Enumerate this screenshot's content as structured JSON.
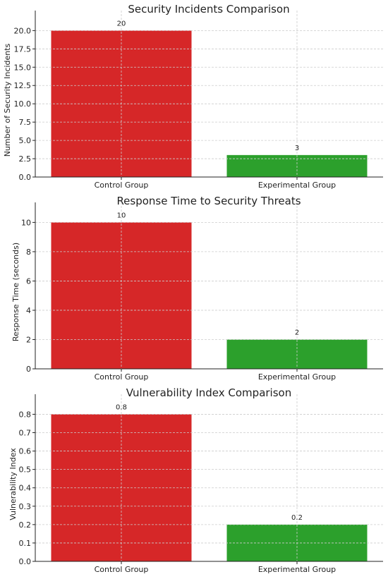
{
  "chart_data": [
    {
      "type": "bar",
      "title": "Security Incidents Comparison",
      "xlabel": "",
      "ylabel": "Number of Security Incidents",
      "categories": [
        "Control Group",
        "Experimental Group"
      ],
      "values": [
        20,
        3
      ],
      "value_labels": [
        "20",
        "3"
      ],
      "colors": [
        "#d62728",
        "#2ca02c"
      ],
      "ylim": [
        0,
        21
      ],
      "yticks": [
        0,
        2.5,
        5,
        7.5,
        10,
        12.5,
        15,
        17.5,
        20
      ],
      "ytick_labels": [
        "0.0",
        "2.5",
        "5.0",
        "7.5",
        "10.0",
        "12.5",
        "15.0",
        "17.5",
        "20.0"
      ],
      "grid": true
    },
    {
      "type": "bar",
      "title": "Response Time to Security Threats",
      "xlabel": "",
      "ylabel": "Response Time (seconds)",
      "categories": [
        "Control Group",
        "Experimental Group"
      ],
      "values": [
        10,
        2
      ],
      "value_labels": [
        "10",
        "2"
      ],
      "colors": [
        "#d62728",
        "#2ca02c"
      ],
      "ylim": [
        0,
        10.5
      ],
      "yticks": [
        0,
        2,
        4,
        6,
        8,
        10
      ],
      "ytick_labels": [
        "0",
        "2",
        "4",
        "6",
        "8",
        "10"
      ],
      "grid": true
    },
    {
      "type": "bar",
      "title": "Vulnerability Index Comparison",
      "xlabel": "",
      "ylabel": "Vulnerability Index",
      "categories": [
        "Control Group",
        "Experimental Group"
      ],
      "values": [
        0.8,
        0.2
      ],
      "value_labels": [
        "0.8",
        "0.2"
      ],
      "colors": [
        "#d62728",
        "#2ca02c"
      ],
      "ylim": [
        0,
        0.84
      ],
      "yticks": [
        0,
        0.1,
        0.2,
        0.3,
        0.4,
        0.5,
        0.6,
        0.7,
        0.8
      ],
      "ytick_labels": [
        "0.0",
        "0.1",
        "0.2",
        "0.3",
        "0.4",
        "0.5",
        "0.6",
        "0.7",
        "0.8"
      ],
      "grid": true
    }
  ]
}
